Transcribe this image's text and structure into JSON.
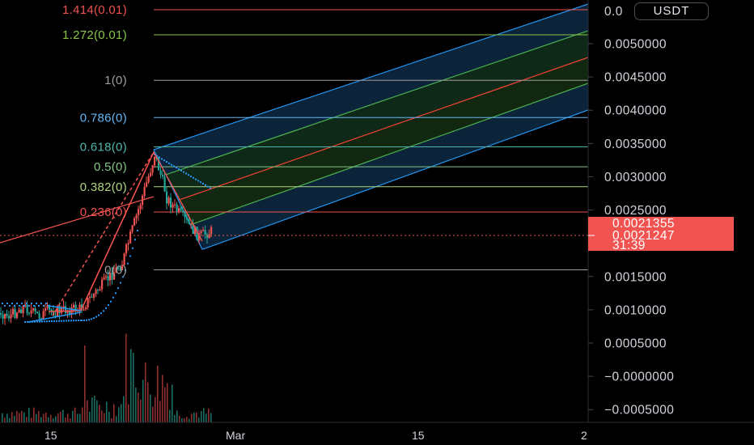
{
  "currency": "USDT",
  "price_axis": {
    "top_partial": "0.0",
    "labels": [
      "0.0050000",
      "0.0045000",
      "0.0040000",
      "0.0035000",
      "0.0030000",
      "0.0025000",
      "0.0015000",
      "0.0010000",
      "0.0005000",
      "−0.0000000",
      "−0.0005000"
    ],
    "values": [
      0.005,
      0.0045,
      0.004,
      0.0035,
      0.003,
      0.0025,
      0.0015,
      0.001,
      0.0005,
      0,
      -0.0005
    ]
  },
  "price_badges": {
    "last_price": "0.0021355",
    "current_price": "0.0021247",
    "countdown": "31:39",
    "color": "#f05350"
  },
  "fib_levels": [
    {
      "label": "1.414(0.01)",
      "price": 0.0054,
      "color": "#f05350"
    },
    {
      "label": "1.272(0.01)",
      "price": 0.00513,
      "color": "#8bc34a"
    },
    {
      "label": "1(0)",
      "price": 0.00445,
      "color": "#9e9e9e"
    },
    {
      "label": "0.786(0)",
      "price": 0.00389,
      "color": "#64b5f6"
    },
    {
      "label": "0.618(0)",
      "price": 0.00345,
      "color": "#4db6ac"
    },
    {
      "label": "0.5(0)",
      "price": 0.00315,
      "color": "#81c784"
    },
    {
      "label": "0.382(0)",
      "price": 0.00285,
      "color": "#aed581"
    },
    {
      "label": "0.236(0)",
      "price": 0.00247,
      "color": "#f05350"
    },
    {
      "label": "0(0)",
      "price": 0.0016,
      "color": "#9e9e9e"
    }
  ],
  "time_axis": {
    "labels": [
      "15",
      "Mar",
      "15"
    ]
  },
  "colors": {
    "bull": "#26a69a",
    "bear": "#ef5350",
    "channel_blue": "#2196f3",
    "channel_green": "#4caf50",
    "channel_red": "#f44336"
  }
}
